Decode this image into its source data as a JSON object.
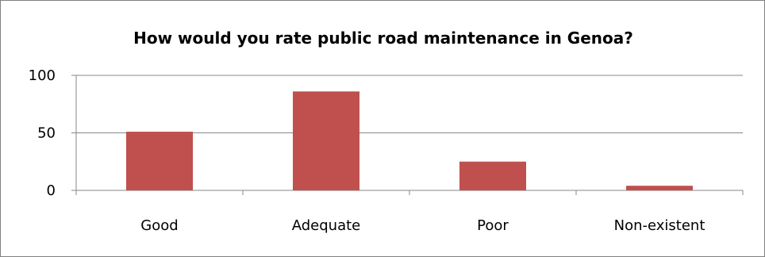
{
  "chart_data": {
    "type": "bar",
    "title": "How would you rate public road maintenance in Genoa?",
    "categories": [
      "Good",
      "Adequate",
      "Poor",
      "Non-existent"
    ],
    "values": [
      51,
      86,
      25,
      4
    ],
    "ylim": [
      0,
      100
    ],
    "yticks": [
      "0",
      "50",
      "100"
    ],
    "xlabel": "",
    "ylabel": "",
    "grid": true,
    "legend": "none",
    "bar_color": "#c0504d",
    "grid_color": "#878787"
  }
}
